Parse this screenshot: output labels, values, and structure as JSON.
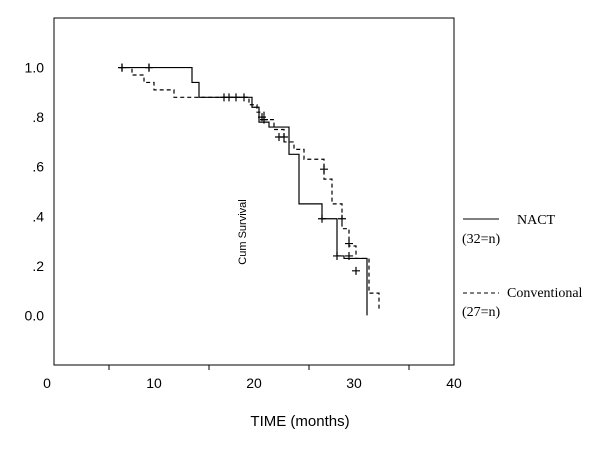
{
  "chart_data": {
    "type": "line",
    "title": "",
    "xlabel": "TIME (months)",
    "ylabel": "Cum Survival",
    "xlim": [
      0,
      40
    ],
    "ylim": [
      -0.2,
      1.2
    ],
    "x_ticks": [
      {
        "value": 0,
        "label": "0"
      },
      {
        "value": 10,
        "label": "10"
      },
      {
        "value": 20,
        "label": "20"
      },
      {
        "value": 30,
        "label": "30"
      },
      {
        "value": 40,
        "label": "40"
      }
    ],
    "y_ticks": [
      {
        "value": 1.0,
        "label": "1.0"
      },
      {
        "value": 0.8,
        "label": ".8"
      },
      {
        "value": 0.6,
        "label": ".6"
      },
      {
        "value": 0.4,
        "label": ".4"
      },
      {
        "value": 0.2,
        "label": ".2"
      },
      {
        "value": 0.0,
        "label": "0.0"
      }
    ],
    "grid": false,
    "legend_position": "right",
    "series": [
      {
        "name": "NACT",
        "count_label": "(32=n)",
        "style": "solid",
        "color": "#000000",
        "steps": [
          [
            6.5,
            1.0
          ],
          [
            13.8,
            0.94
          ],
          [
            14.5,
            0.88
          ],
          [
            19.8,
            0.84
          ],
          [
            20.5,
            0.78
          ],
          [
            21.5,
            0.76
          ],
          [
            23.5,
            0.65
          ],
          [
            24.5,
            0.45
          ],
          [
            26.8,
            0.39
          ],
          [
            28.3,
            0.24
          ],
          [
            29.0,
            0.23
          ],
          [
            31.3,
            0.0
          ]
        ],
        "censored": [
          [
            6.8,
            1.0
          ],
          [
            9.5,
            1.0
          ],
          [
            17.0,
            0.88
          ],
          [
            18.2,
            0.88
          ],
          [
            20.8,
            0.8
          ],
          [
            22.5,
            0.72
          ],
          [
            26.8,
            0.39
          ],
          [
            28.3,
            0.24
          ],
          [
            29.5,
            0.24
          ]
        ]
      },
      {
        "name": "Conventional",
        "count_label": "(27=n)",
        "style": "dashed",
        "color": "#000000",
        "steps": [
          [
            6.5,
            1.0
          ],
          [
            7.8,
            0.97
          ],
          [
            9.0,
            0.94
          ],
          [
            10.0,
            0.91
          ],
          [
            12.0,
            0.88
          ],
          [
            19.5,
            0.85
          ],
          [
            20.3,
            0.82
          ],
          [
            21.0,
            0.79
          ],
          [
            22.0,
            0.75
          ],
          [
            23.0,
            0.7
          ],
          [
            24.0,
            0.67
          ],
          [
            25.0,
            0.63
          ],
          [
            27.0,
            0.55
          ],
          [
            27.8,
            0.45
          ],
          [
            28.8,
            0.35
          ],
          [
            29.5,
            0.28
          ],
          [
            30.2,
            0.23
          ],
          [
            31.5,
            0.09
          ],
          [
            32.5,
            0.02
          ]
        ],
        "censored": [
          [
            6.8,
            1.0
          ],
          [
            9.5,
            1.0
          ],
          [
            17.5,
            0.88
          ],
          [
            19.0,
            0.88
          ],
          [
            21.0,
            0.79
          ],
          [
            23.0,
            0.72
          ],
          [
            27.0,
            0.59
          ],
          [
            28.8,
            0.39
          ],
          [
            29.5,
            0.29
          ],
          [
            30.2,
            0.18
          ]
        ]
      }
    ]
  }
}
